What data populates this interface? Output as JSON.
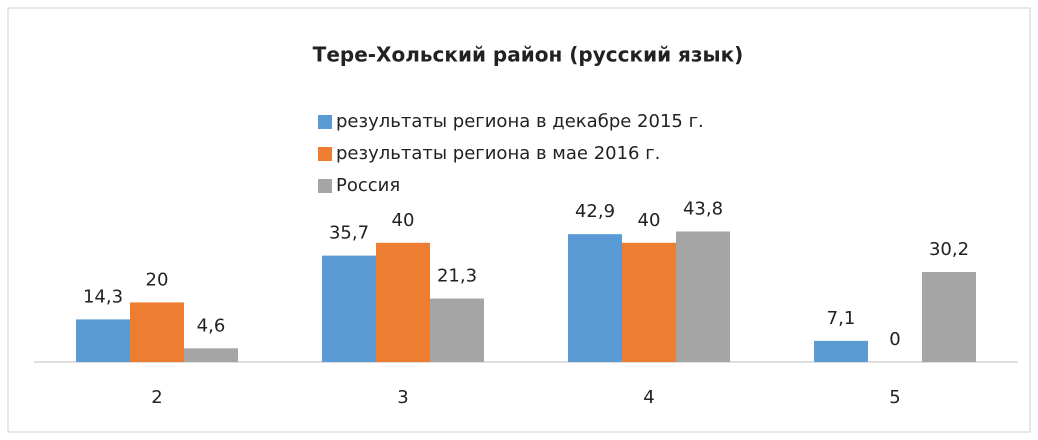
{
  "chart_data": {
    "type": "bar",
    "title": "Тере-Хольский район (русский язык)",
    "categories": [
      "2",
      "3",
      "4",
      "5"
    ],
    "series": [
      {
        "name": "результаты региона в декабре 2015 г.",
        "color": "#5b9bd5",
        "values": [
          14.3,
          35.7,
          42.9,
          7.1
        ],
        "value_labels": [
          "14,3",
          "35,7",
          "42,9",
          "7,1"
        ]
      },
      {
        "name": "результаты региона в мае 2016 г.",
        "color": "#ed7d31",
        "values": [
          20,
          40,
          40,
          0
        ],
        "value_labels": [
          "20",
          "40",
          "40",
          "0"
        ]
      },
      {
        "name": "Россия",
        "color": "#a5a5a5",
        "values": [
          4.6,
          21.3,
          43.8,
          30.2
        ],
        "value_labels": [
          "4,6",
          "21,3",
          "43,8",
          "30,2"
        ]
      }
    ],
    "ylim": [
      0,
      50
    ]
  }
}
